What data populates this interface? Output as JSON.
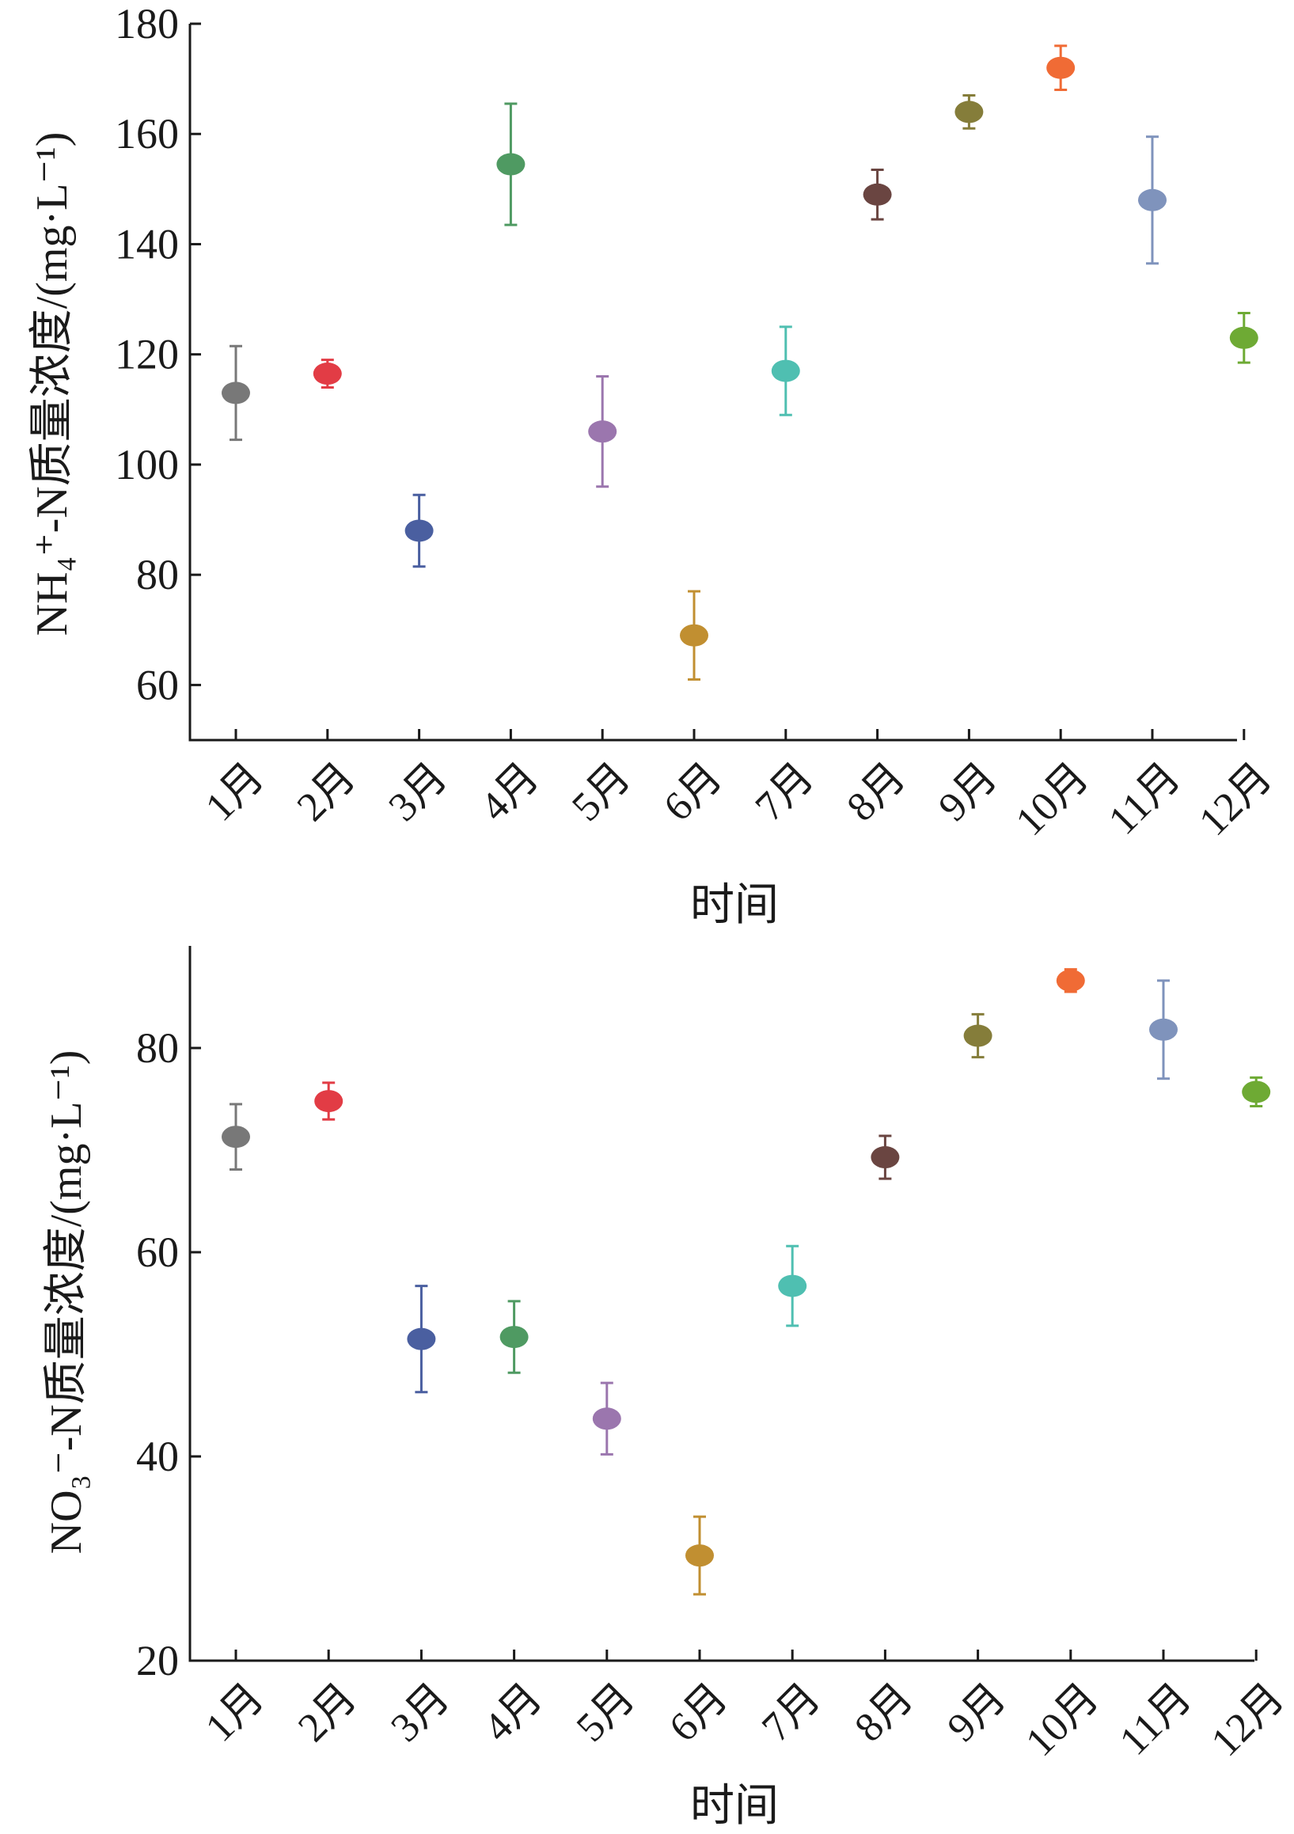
{
  "chart_data": [
    {
      "type": "scatter",
      "error_bars": true,
      "title": "",
      "xlabel": "时间",
      "ylabel": "NH₄⁺-N质量浓度/(mg·L⁻¹)",
      "categories": [
        "1月",
        "2月",
        "3月",
        "4月",
        "5月",
        "6月",
        "7月",
        "8月",
        "9月",
        "10月",
        "11月",
        "12月"
      ],
      "values": [
        113,
        116.5,
        88,
        154.5,
        106,
        69,
        117,
        149,
        164,
        172,
        148,
        123
      ],
      "errors": [
        8.5,
        2.5,
        6.5,
        11,
        10,
        8,
        8,
        4.5,
        3,
        4,
        11.5,
        4.5
      ],
      "colors": [
        "#787878",
        "#e23c45",
        "#4a5fa0",
        "#4f9a62",
        "#9b76ae",
        "#c18f31",
        "#4fbfb1",
        "#6a4541",
        "#857d3a",
        "#f06b35",
        "#7f93bc",
        "#6eaa34"
      ],
      "ylim": [
        50,
        180
      ],
      "yticks": [
        60,
        80,
        100,
        120,
        140,
        160,
        180
      ],
      "grid": false,
      "legend": "none"
    },
    {
      "type": "scatter",
      "error_bars": true,
      "title": "",
      "xlabel": "时间",
      "ylabel": "NO₃⁻-N质量浓度/(mg·L⁻¹)",
      "categories": [
        "1月",
        "2月",
        "3月",
        "4月",
        "5月",
        "6月",
        "7月",
        "8月",
        "9月",
        "10月",
        "11月",
        "12月"
      ],
      "values": [
        71.3,
        74.8,
        51.5,
        51.7,
        43.7,
        30.3,
        56.7,
        69.3,
        81.2,
        86.6,
        81.8,
        75.7
      ],
      "errors": [
        3.2,
        1.8,
        5.2,
        3.5,
        3.5,
        3.8,
        3.9,
        2.1,
        2.1,
        1.1,
        4.8,
        1.4
      ],
      "colors": [
        "#787878",
        "#e23c45",
        "#4a5fa0",
        "#4f9a62",
        "#9b76ae",
        "#c18f31",
        "#4fbfb1",
        "#6a4541",
        "#857d3a",
        "#f06b35",
        "#7f93bc",
        "#6eaa34"
      ],
      "ylim": [
        20,
        90
      ],
      "yticks": [
        20,
        40,
        60,
        80
      ],
      "grid": false,
      "legend": "none"
    }
  ]
}
